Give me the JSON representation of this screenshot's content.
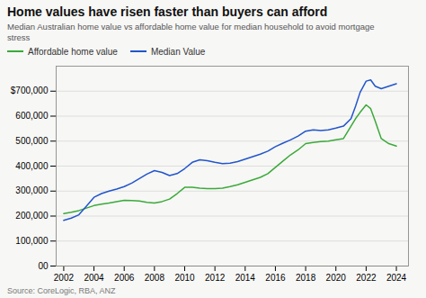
{
  "chart_data": {
    "type": "line",
    "title": "Home values have risen faster than buyers can afford",
    "subtitle": "Median Australian home value vs affordable home value for median household to avoid mortgage\nstress",
    "source": "Source: CoreLogic, RBA, ANZ",
    "x": [
      2002,
      2002.5,
      2003,
      2003.5,
      2004,
      2004.5,
      2005,
      2005.5,
      2006,
      2006.5,
      2007,
      2007.5,
      2008,
      2008.5,
      2009,
      2009.5,
      2010,
      2010.5,
      2011,
      2011.5,
      2012,
      2012.5,
      2013,
      2013.5,
      2014,
      2014.5,
      2015,
      2015.5,
      2016,
      2016.5,
      2017,
      2017.5,
      2018,
      2018.5,
      2019,
      2019.5,
      2020,
      2020.5,
      2021,
      2021.3,
      2021.6,
      2022,
      2022.3,
      2022.6,
      2023,
      2023.5,
      2024
    ],
    "series": [
      {
        "name": "Affordable home value",
        "color": "#3aaa3a",
        "values": [
          210000,
          215000,
          222000,
          232000,
          242000,
          248000,
          252000,
          258000,
          263000,
          262000,
          260000,
          255000,
          252000,
          258000,
          268000,
          290000,
          315000,
          315000,
          312000,
          310000,
          310000,
          312000,
          318000,
          325000,
          335000,
          345000,
          355000,
          370000,
          395000,
          420000,
          445000,
          465000,
          490000,
          495000,
          498000,
          500000,
          505000,
          510000,
          560000,
          590000,
          615000,
          645000,
          630000,
          580000,
          510000,
          490000,
          480000
        ]
      },
      {
        "name": "Median Value",
        "color": "#2255cc",
        "values": [
          183000,
          192000,
          205000,
          240000,
          275000,
          290000,
          300000,
          308000,
          318000,
          332000,
          350000,
          368000,
          382000,
          375000,
          362000,
          370000,
          390000,
          415000,
          425000,
          422000,
          415000,
          410000,
          412000,
          418000,
          428000,
          438000,
          448000,
          460000,
          478000,
          492000,
          505000,
          520000,
          540000,
          545000,
          542000,
          545000,
          552000,
          560000,
          590000,
          640000,
          695000,
          740000,
          745000,
          720000,
          710000,
          720000,
          730000
        ]
      }
    ],
    "xlim": [
      2001.5,
      2024.8
    ],
    "xticks": [
      2002,
      2004,
      2006,
      2008,
      2010,
      2012,
      2014,
      2016,
      2018,
      2020,
      2022,
      2024
    ],
    "ylim": [
      0,
      800000
    ],
    "yticks": [
      {
        "value": 0,
        "label": "00"
      },
      {
        "value": 100000,
        "label": "100,000"
      },
      {
        "value": 200000,
        "label": "200,000"
      },
      {
        "value": 300000,
        "label": "300,000"
      },
      {
        "value": 400000,
        "label": "400,000"
      },
      {
        "value": 500000,
        "label": "500,000"
      },
      {
        "value": 600000,
        "label": "600,000"
      },
      {
        "value": 700000,
        "label": "$700,000"
      }
    ],
    "grid": true,
    "legend": "top left"
  }
}
